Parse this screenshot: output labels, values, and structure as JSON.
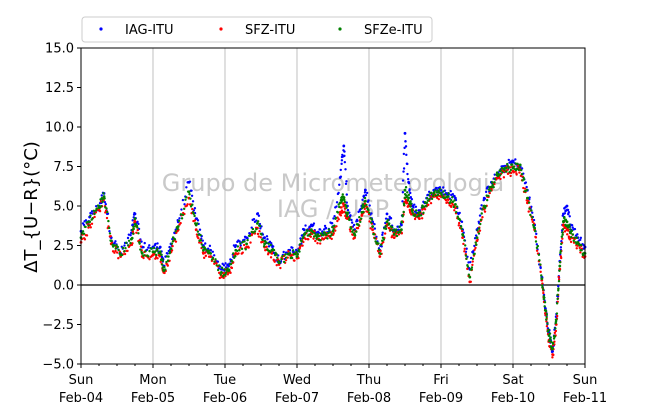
{
  "chart_data": {
    "type": "scatter",
    "ylabel": "ΔT_{U−R}(°C)",
    "ylim": [
      -5.0,
      15.0
    ],
    "yticks": [
      "−5.0",
      "−2.5",
      "0.0",
      "2.5",
      "5.0",
      "7.5",
      "10.0",
      "12.5",
      "15.0"
    ],
    "xlim": [
      "2018-02-04 00:00",
      "2018-02-11 00:00"
    ],
    "xticks": [
      {
        "day": "Sun",
        "date": "Feb-04"
      },
      {
        "day": "Mon",
        "date": "Feb-05"
      },
      {
        "day": "Tue",
        "date": "Feb-06"
      },
      {
        "day": "Wed",
        "date": "Feb-07"
      },
      {
        "day": "Thu",
        "date": "Feb-08"
      },
      {
        "day": "Fri",
        "date": "Feb-09"
      },
      {
        "day": "Sat",
        "date": "Feb-10"
      },
      {
        "day": "Sun",
        "date": "Feb-11"
      }
    ],
    "grid": "vertical",
    "zero_line": true,
    "legend_position": "top, above plot",
    "watermark": [
      "Grupo de Micrometeorologia",
      "IAG / USP"
    ],
    "x_units": "days since 2018-02-04 00:00",
    "series": [
      {
        "name": "IAG-ITU",
        "color": "#0000ff",
        "points": [
          [
            0.0,
            3.4
          ],
          [
            0.12,
            4.3
          ],
          [
            0.25,
            5.0
          ],
          [
            0.32,
            5.8
          ],
          [
            0.42,
            3.0
          ],
          [
            0.55,
            2.0
          ],
          [
            0.7,
            3.3
          ],
          [
            0.75,
            4.5
          ],
          [
            0.85,
            2.4
          ],
          [
            1.0,
            2.4
          ],
          [
            1.1,
            2.4
          ],
          [
            1.15,
            1.2
          ],
          [
            1.25,
            2.6
          ],
          [
            1.35,
            4.0
          ],
          [
            1.5,
            6.5
          ],
          [
            1.6,
            4.2
          ],
          [
            1.7,
            2.5
          ],
          [
            1.8,
            2.2
          ],
          [
            1.95,
            1.0
          ],
          [
            2.05,
            1.2
          ],
          [
            2.15,
            2.5
          ],
          [
            2.3,
            3.0
          ],
          [
            2.45,
            4.5
          ],
          [
            2.55,
            3.0
          ],
          [
            2.65,
            2.5
          ],
          [
            2.75,
            1.5
          ],
          [
            2.9,
            2.2
          ],
          [
            3.0,
            2.0
          ],
          [
            3.1,
            3.5
          ],
          [
            3.2,
            3.8
          ],
          [
            3.3,
            3.3
          ],
          [
            3.4,
            3.6
          ],
          [
            3.5,
            3.7
          ],
          [
            3.6,
            6.8
          ],
          [
            3.65,
            8.8
          ],
          [
            3.7,
            5.0
          ],
          [
            3.8,
            3.5
          ],
          [
            3.9,
            5.0
          ],
          [
            3.95,
            6.0
          ],
          [
            4.05,
            4.0
          ],
          [
            4.15,
            2.2
          ],
          [
            4.25,
            4.5
          ],
          [
            4.35,
            3.5
          ],
          [
            4.45,
            3.8
          ],
          [
            4.5,
            9.6
          ],
          [
            4.55,
            6.5
          ],
          [
            4.6,
            5.0
          ],
          [
            4.7,
            4.5
          ],
          [
            4.8,
            5.5
          ],
          [
            4.9,
            6.0
          ],
          [
            5.0,
            6.0
          ],
          [
            5.1,
            5.8
          ],
          [
            5.2,
            5.5
          ],
          [
            5.3,
            3.5
          ],
          [
            5.4,
            1.0
          ],
          [
            5.5,
            3.5
          ],
          [
            5.6,
            5.5
          ],
          [
            5.7,
            6.5
          ],
          [
            5.8,
            7.0
          ],
          [
            5.9,
            7.5
          ],
          [
            6.0,
            7.8
          ],
          [
            6.1,
            7.5
          ],
          [
            6.2,
            6.0
          ],
          [
            6.3,
            3.8
          ],
          [
            6.4,
            0.5
          ],
          [
            6.45,
            -1.5
          ],
          [
            6.5,
            -3.0
          ],
          [
            6.55,
            -4.2
          ],
          [
            6.6,
            -2.0
          ],
          [
            6.65,
            1.5
          ],
          [
            6.7,
            4.5
          ],
          [
            6.75,
            5.0
          ],
          [
            6.8,
            3.8
          ],
          [
            6.9,
            3.0
          ],
          [
            7.0,
            2.4
          ]
        ]
      },
      {
        "name": "SFZ-ITU",
        "color": "#ff0000",
        "points": [
          [
            0.0,
            2.7
          ],
          [
            0.12,
            3.8
          ],
          [
            0.25,
            4.8
          ],
          [
            0.32,
            5.5
          ],
          [
            0.42,
            2.6
          ],
          [
            0.55,
            1.8
          ],
          [
            0.7,
            2.6
          ],
          [
            0.75,
            4.0
          ],
          [
            0.85,
            1.8
          ],
          [
            1.0,
            1.9
          ],
          [
            1.1,
            1.9
          ],
          [
            1.15,
            0.8
          ],
          [
            1.25,
            2.1
          ],
          [
            1.35,
            3.5
          ],
          [
            1.5,
            5.5
          ],
          [
            1.6,
            3.5
          ],
          [
            1.7,
            2.0
          ],
          [
            1.8,
            1.8
          ],
          [
            1.95,
            0.6
          ],
          [
            2.05,
            0.8
          ],
          [
            2.15,
            2.0
          ],
          [
            2.3,
            2.4
          ],
          [
            2.45,
            3.6
          ],
          [
            2.55,
            2.4
          ],
          [
            2.65,
            2.0
          ],
          [
            2.75,
            1.3
          ],
          [
            2.9,
            1.9
          ],
          [
            3.0,
            1.7
          ],
          [
            3.1,
            3.0
          ],
          [
            3.2,
            3.3
          ],
          [
            3.3,
            2.9
          ],
          [
            3.4,
            3.0
          ],
          [
            3.5,
            3.2
          ],
          [
            3.6,
            4.6
          ],
          [
            3.65,
            5.0
          ],
          [
            3.7,
            4.2
          ],
          [
            3.8,
            3.0
          ],
          [
            3.9,
            4.4
          ],
          [
            3.95,
            5.0
          ],
          [
            4.05,
            3.5
          ],
          [
            4.15,
            1.8
          ],
          [
            4.25,
            3.8
          ],
          [
            4.35,
            3.0
          ],
          [
            4.45,
            3.3
          ],
          [
            4.5,
            5.5
          ],
          [
            4.55,
            5.0
          ],
          [
            4.6,
            4.5
          ],
          [
            4.7,
            4.2
          ],
          [
            4.8,
            5.0
          ],
          [
            4.9,
            5.6
          ],
          [
            5.0,
            5.6
          ],
          [
            5.1,
            5.4
          ],
          [
            5.2,
            4.9
          ],
          [
            5.3,
            3.0
          ],
          [
            5.4,
            0.2
          ],
          [
            5.5,
            2.8
          ],
          [
            5.6,
            4.8
          ],
          [
            5.7,
            6.0
          ],
          [
            5.8,
            6.8
          ],
          [
            5.9,
            7.2
          ],
          [
            6.0,
            7.2
          ],
          [
            6.1,
            7.3
          ],
          [
            6.2,
            5.2
          ],
          [
            6.3,
            3.5
          ],
          [
            6.4,
            0.3
          ],
          [
            6.45,
            -1.8
          ],
          [
            6.5,
            -3.5
          ],
          [
            6.55,
            -4.4
          ],
          [
            6.6,
            -2.5
          ],
          [
            6.65,
            1.0
          ],
          [
            6.7,
            3.8
          ],
          [
            6.75,
            3.5
          ],
          [
            6.8,
            3.0
          ],
          [
            6.9,
            2.5
          ],
          [
            7.0,
            1.8
          ]
        ]
      },
      {
        "name": "SFZe-ITU",
        "color": "#008000",
        "points": [
          [
            0.0,
            3.0
          ],
          [
            0.12,
            4.0
          ],
          [
            0.25,
            4.9
          ],
          [
            0.32,
            5.6
          ],
          [
            0.42,
            2.8
          ],
          [
            0.55,
            1.9
          ],
          [
            0.7,
            2.9
          ],
          [
            0.75,
            4.2
          ],
          [
            0.85,
            2.0
          ],
          [
            1.0,
            2.1
          ],
          [
            1.1,
            2.1
          ],
          [
            1.15,
            0.9
          ],
          [
            1.25,
            2.3
          ],
          [
            1.35,
            3.7
          ],
          [
            1.5,
            5.9
          ],
          [
            1.6,
            3.8
          ],
          [
            1.7,
            2.2
          ],
          [
            1.8,
            2.0
          ],
          [
            1.95,
            0.8
          ],
          [
            2.05,
            0.9
          ],
          [
            2.15,
            2.2
          ],
          [
            2.3,
            2.6
          ],
          [
            2.45,
            3.9
          ],
          [
            2.55,
            2.6
          ],
          [
            2.65,
            2.2
          ],
          [
            2.75,
            1.4
          ],
          [
            2.9,
            2.0
          ],
          [
            3.0,
            1.8
          ],
          [
            3.1,
            3.2
          ],
          [
            3.2,
            3.5
          ],
          [
            3.3,
            3.1
          ],
          [
            3.4,
            3.2
          ],
          [
            3.5,
            3.4
          ],
          [
            3.6,
            5.2
          ],
          [
            3.65,
            5.5
          ],
          [
            3.7,
            4.5
          ],
          [
            3.8,
            3.2
          ],
          [
            3.9,
            4.6
          ],
          [
            3.95,
            5.3
          ],
          [
            4.05,
            3.7
          ],
          [
            4.15,
            2.0
          ],
          [
            4.25,
            4.0
          ],
          [
            4.35,
            3.2
          ],
          [
            4.45,
            3.5
          ],
          [
            4.5,
            6.0
          ],
          [
            4.55,
            5.5
          ],
          [
            4.6,
            4.7
          ],
          [
            4.7,
            4.4
          ],
          [
            4.8,
            5.2
          ],
          [
            4.9,
            5.8
          ],
          [
            5.0,
            5.8
          ],
          [
            5.1,
            5.6
          ],
          [
            5.2,
            5.1
          ],
          [
            5.3,
            3.2
          ],
          [
            5.4,
            0.5
          ],
          [
            5.5,
            3.0
          ],
          [
            5.6,
            5.0
          ],
          [
            5.7,
            6.2
          ],
          [
            5.8,
            7.0
          ],
          [
            5.9,
            7.4
          ],
          [
            6.0,
            7.4
          ],
          [
            6.1,
            7.6
          ],
          [
            6.2,
            5.5
          ],
          [
            6.3,
            3.6
          ],
          [
            6.4,
            0.4
          ],
          [
            6.45,
            -1.6
          ],
          [
            6.5,
            -3.2
          ],
          [
            6.55,
            -4.0
          ],
          [
            6.6,
            -2.2
          ],
          [
            6.65,
            1.2
          ],
          [
            6.7,
            4.0
          ],
          [
            6.75,
            4.0
          ],
          [
            6.8,
            3.3
          ],
          [
            6.9,
            2.7
          ],
          [
            7.0,
            2.0
          ]
        ]
      }
    ]
  }
}
